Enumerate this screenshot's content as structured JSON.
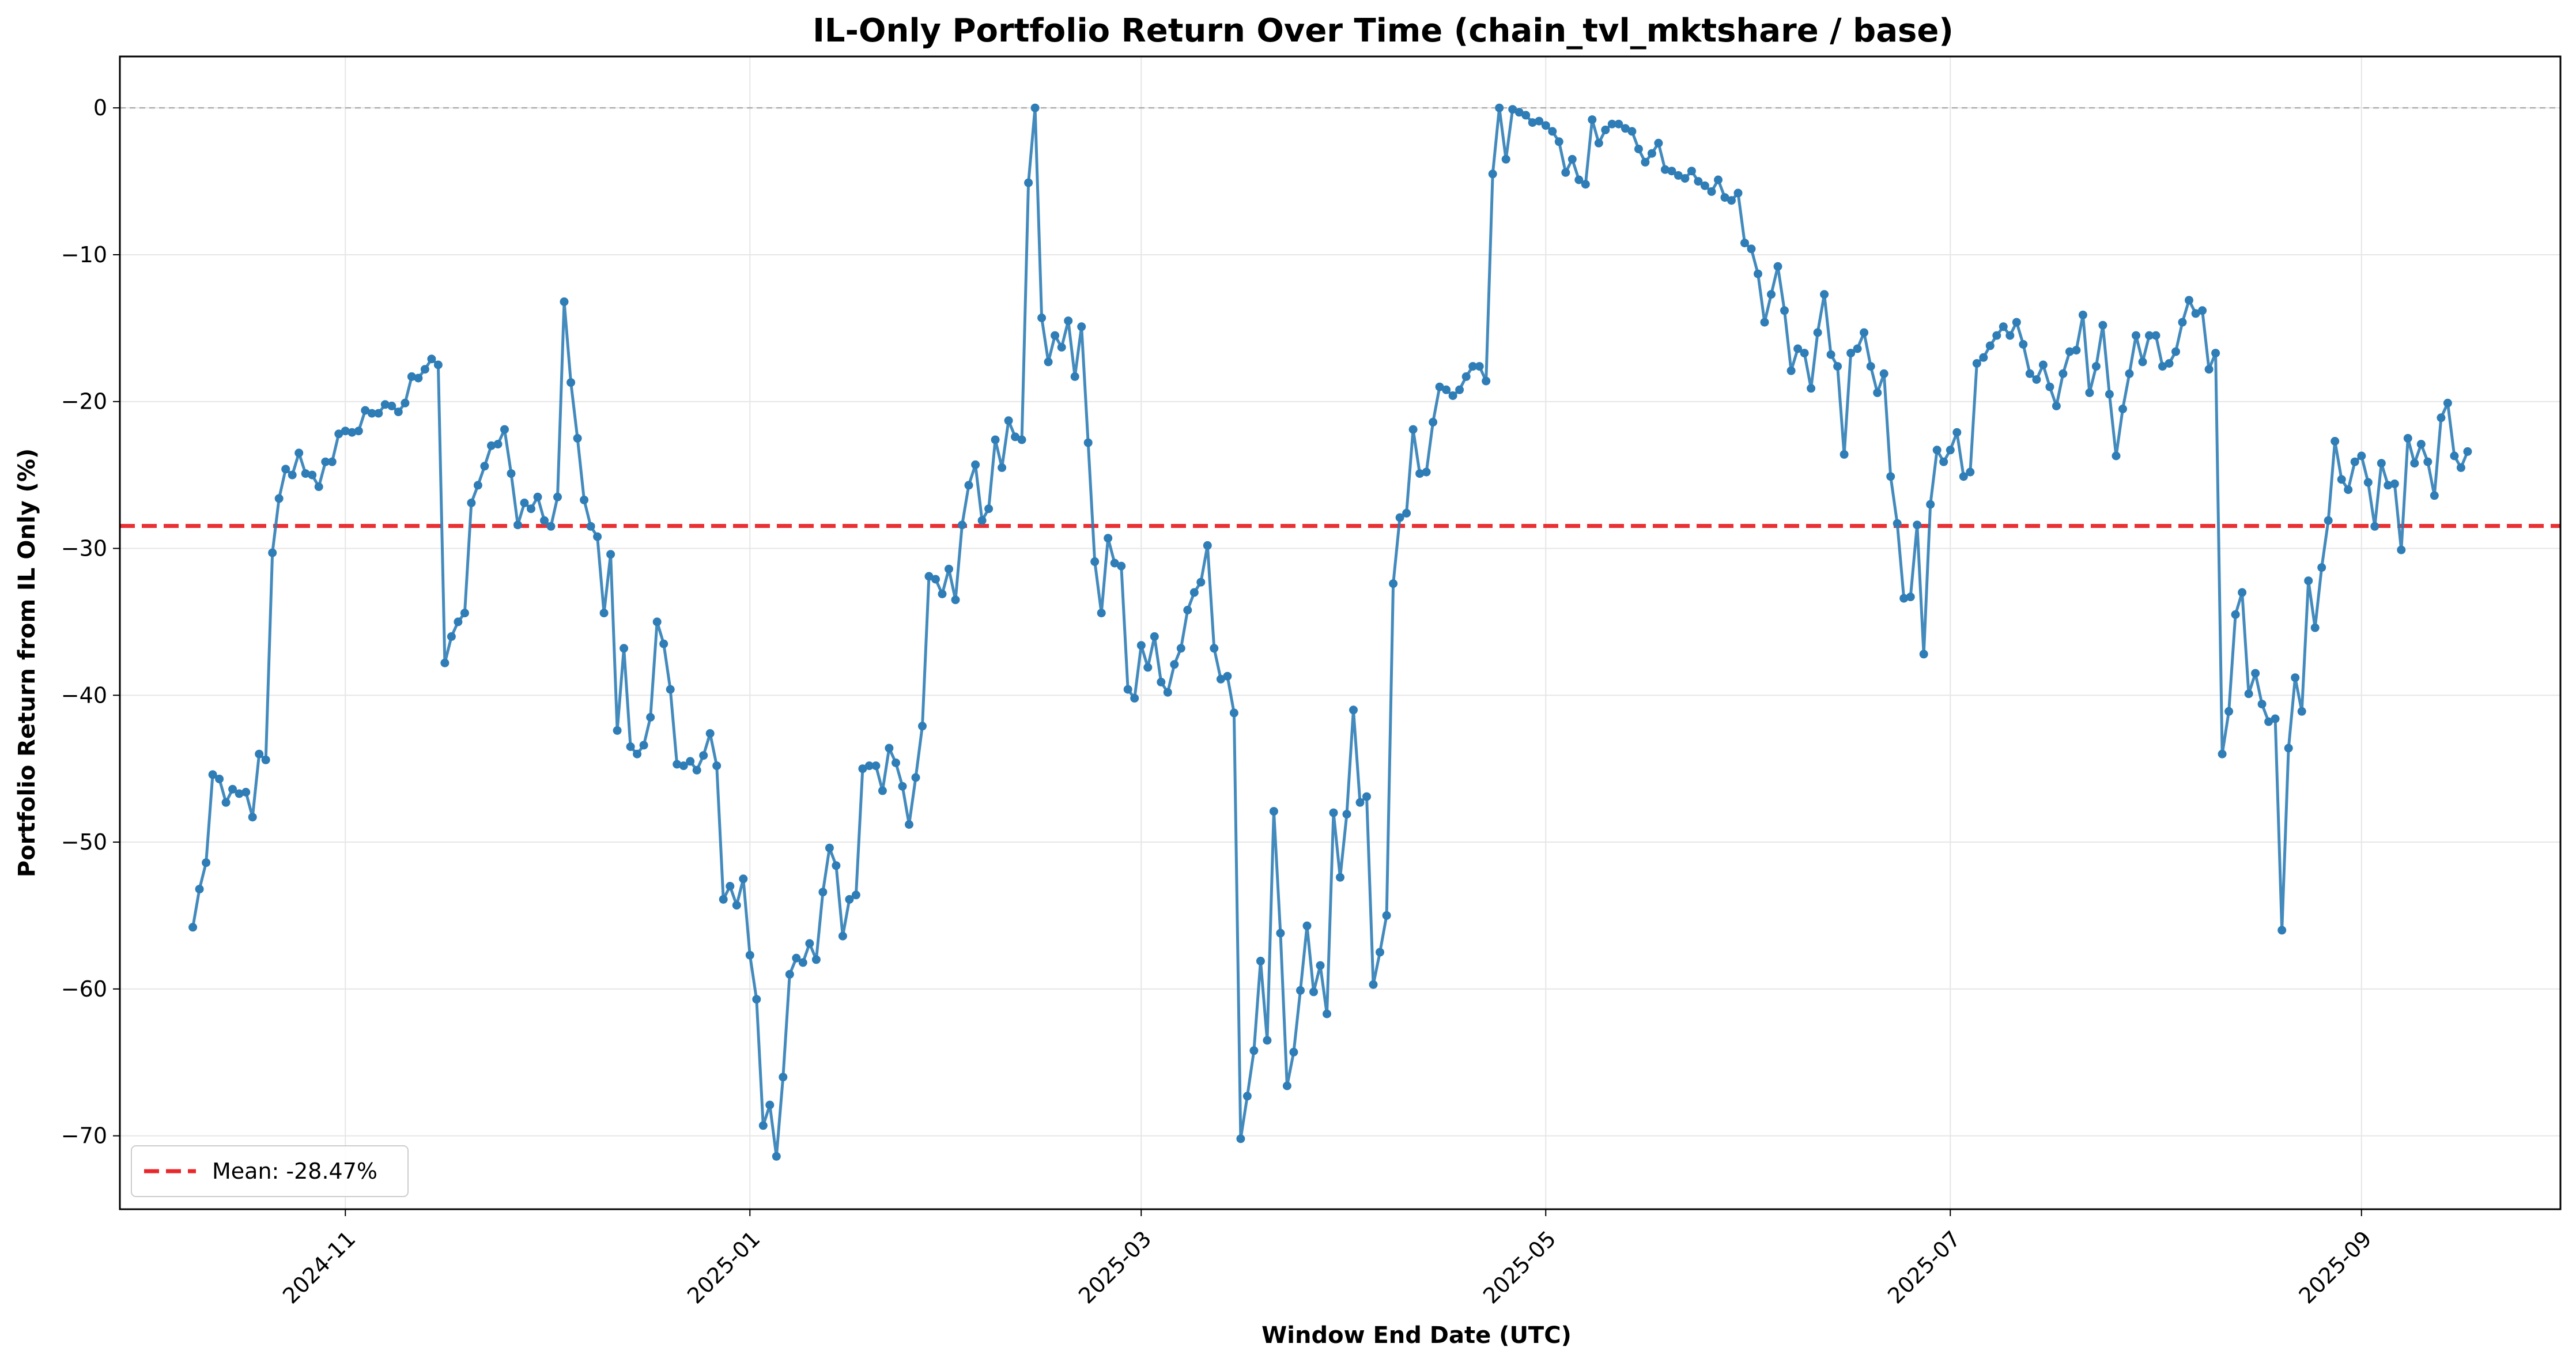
{
  "chart_data": {
    "type": "line",
    "title": "IL-Only Portfolio Return Over Time (chain_tvl_mktshare / base)",
    "xlabel": "Window End Date (UTC)",
    "ylabel": "Portfolio Return from IL Only (%)",
    "x_ticks": [
      "2024-11",
      "2025-01",
      "2025-03",
      "2025-05",
      "2025-07",
      "2025-09"
    ],
    "y_ticks": [
      0,
      -10,
      -20,
      -30,
      -40,
      -50,
      -60,
      -70
    ],
    "xlim": [
      "2024-09-28",
      "2025-10-01"
    ],
    "ylim": [
      -75,
      3.5
    ],
    "grid": true,
    "legend_position": "lower-left",
    "reference_lines": [
      {
        "label": "Mean: -28.47%",
        "value": -28.47,
        "color": "#e8272a",
        "style": "dashed"
      },
      {
        "label": "",
        "value": 0,
        "color": "#999999",
        "style": "dashed"
      }
    ],
    "series": [
      {
        "color": "#2f7db6",
        "x": [
          "2024-10-09",
          "2024-10-10",
          "2024-10-11",
          "2024-10-12",
          "2024-10-13",
          "2024-10-14",
          "2024-10-15",
          "2024-10-16",
          "2024-10-17",
          "2024-10-18",
          "2024-10-19",
          "2024-10-20",
          "2024-10-21",
          "2024-10-22",
          "2024-10-23",
          "2024-10-24",
          "2024-10-25",
          "2024-10-26",
          "2024-10-27",
          "2024-10-28",
          "2024-10-29",
          "2024-10-30",
          "2024-10-31",
          "2024-11-01",
          "2024-11-02",
          "2024-11-03",
          "2024-11-04",
          "2024-11-05",
          "2024-11-06",
          "2024-11-07",
          "2024-11-08",
          "2024-11-09",
          "2024-11-10",
          "2024-11-11",
          "2024-11-12",
          "2024-11-13",
          "2024-11-14",
          "2024-11-15",
          "2024-11-16",
          "2024-11-17",
          "2024-11-18",
          "2024-11-19",
          "2024-11-20",
          "2024-11-21",
          "2024-11-22",
          "2024-11-23",
          "2024-11-24",
          "2024-11-25",
          "2024-11-26",
          "2024-11-27",
          "2024-11-28",
          "2024-11-29",
          "2024-11-30",
          "2024-12-01",
          "2024-12-02",
          "2024-12-03",
          "2024-12-04",
          "2024-12-05",
          "2024-12-06",
          "2024-12-07",
          "2024-12-08",
          "2024-12-09",
          "2024-12-10",
          "2024-12-11",
          "2024-12-12",
          "2024-12-13",
          "2024-12-14",
          "2024-12-15",
          "2024-12-16",
          "2024-12-17",
          "2024-12-18",
          "2024-12-19",
          "2024-12-20",
          "2024-12-21",
          "2024-12-22",
          "2024-12-23",
          "2024-12-24",
          "2024-12-25",
          "2024-12-26",
          "2024-12-27",
          "2024-12-28",
          "2024-12-29",
          "2024-12-30",
          "2024-12-31",
          "2025-01-01",
          "2025-01-02",
          "2025-01-03",
          "2025-01-04",
          "2025-01-05",
          "2025-01-06",
          "2025-01-07",
          "2025-01-08",
          "2025-01-09",
          "2025-01-10",
          "2025-01-11",
          "2025-01-12",
          "2025-01-13",
          "2025-01-14",
          "2025-01-15",
          "2025-01-16",
          "2025-01-17",
          "2025-01-18",
          "2025-01-19",
          "2025-01-20",
          "2025-01-21",
          "2025-01-22",
          "2025-01-23",
          "2025-01-24",
          "2025-01-25",
          "2025-01-26",
          "2025-01-27",
          "2025-01-28",
          "2025-01-29",
          "2025-01-30",
          "2025-01-31",
          "2025-02-01",
          "2025-02-02",
          "2025-02-03",
          "2025-02-04",
          "2025-02-05",
          "2025-02-06",
          "2025-02-07",
          "2025-02-08",
          "2025-02-09",
          "2025-02-10",
          "2025-02-11",
          "2025-02-12",
          "2025-02-13",
          "2025-02-14",
          "2025-02-15",
          "2025-02-16",
          "2025-02-17",
          "2025-02-18",
          "2025-02-19",
          "2025-02-20",
          "2025-02-21",
          "2025-02-22",
          "2025-02-23",
          "2025-02-24",
          "2025-02-25",
          "2025-02-26",
          "2025-02-27",
          "2025-02-28",
          "2025-03-01",
          "2025-03-02",
          "2025-03-03",
          "2025-03-04",
          "2025-03-05",
          "2025-03-06",
          "2025-03-07",
          "2025-03-08",
          "2025-03-09",
          "2025-03-10",
          "2025-03-11",
          "2025-03-12",
          "2025-03-13",
          "2025-03-14",
          "2025-03-15",
          "2025-03-16",
          "2025-03-17",
          "2025-03-18",
          "2025-03-19",
          "2025-03-20",
          "2025-03-21",
          "2025-03-22",
          "2025-03-23",
          "2025-03-24",
          "2025-03-25",
          "2025-03-26",
          "2025-03-27",
          "2025-03-28",
          "2025-03-29",
          "2025-03-30",
          "2025-03-31",
          "2025-04-01",
          "2025-04-02",
          "2025-04-03",
          "2025-04-04",
          "2025-04-05",
          "2025-04-06",
          "2025-04-07",
          "2025-04-08",
          "2025-04-09",
          "2025-04-10",
          "2025-04-11",
          "2025-04-12",
          "2025-04-13",
          "2025-04-14",
          "2025-04-15",
          "2025-04-16",
          "2025-04-17",
          "2025-04-18",
          "2025-04-19",
          "2025-04-20",
          "2025-04-21",
          "2025-04-22",
          "2025-04-23",
          "2025-04-24",
          "2025-04-25",
          "2025-04-26",
          "2025-04-27",
          "2025-04-28",
          "2025-04-29",
          "2025-04-30",
          "2025-05-01",
          "2025-05-02",
          "2025-05-03",
          "2025-05-04",
          "2025-05-05",
          "2025-05-06",
          "2025-05-07",
          "2025-05-08",
          "2025-05-09",
          "2025-05-10",
          "2025-05-11",
          "2025-05-12",
          "2025-05-13",
          "2025-05-14",
          "2025-05-15",
          "2025-05-16",
          "2025-05-17",
          "2025-05-18",
          "2025-05-19",
          "2025-05-20",
          "2025-05-21",
          "2025-05-22",
          "2025-05-23",
          "2025-05-24",
          "2025-05-25",
          "2025-05-26",
          "2025-05-27",
          "2025-05-28",
          "2025-05-29",
          "2025-05-30",
          "2025-05-31",
          "2025-06-01",
          "2025-06-02",
          "2025-06-03",
          "2025-06-04",
          "2025-06-05",
          "2025-06-06",
          "2025-06-07",
          "2025-06-08",
          "2025-06-09",
          "2025-06-10",
          "2025-06-11",
          "2025-06-12",
          "2025-06-13",
          "2025-06-14",
          "2025-06-15",
          "2025-06-16",
          "2025-06-17",
          "2025-06-18",
          "2025-06-19",
          "2025-06-20",
          "2025-06-21",
          "2025-06-22",
          "2025-06-23",
          "2025-06-24",
          "2025-06-25",
          "2025-06-26",
          "2025-06-27",
          "2025-06-28",
          "2025-06-29",
          "2025-06-30",
          "2025-07-01",
          "2025-07-02",
          "2025-07-03",
          "2025-07-04",
          "2025-07-05",
          "2025-07-06",
          "2025-07-07",
          "2025-07-08",
          "2025-07-09",
          "2025-07-10",
          "2025-07-11",
          "2025-07-12",
          "2025-07-13",
          "2025-07-14",
          "2025-07-15",
          "2025-07-16",
          "2025-07-17",
          "2025-07-18",
          "2025-07-19",
          "2025-07-20",
          "2025-07-21",
          "2025-07-22",
          "2025-07-23",
          "2025-07-24",
          "2025-07-25",
          "2025-07-26",
          "2025-07-27",
          "2025-07-28",
          "2025-07-29",
          "2025-07-30",
          "2025-07-31",
          "2025-08-01",
          "2025-08-02",
          "2025-08-03",
          "2025-08-04",
          "2025-08-05",
          "2025-08-06",
          "2025-08-07",
          "2025-08-08",
          "2025-08-09",
          "2025-08-10",
          "2025-08-11",
          "2025-08-12",
          "2025-08-13",
          "2025-08-14",
          "2025-08-15",
          "2025-08-16",
          "2025-08-17",
          "2025-08-18",
          "2025-08-19",
          "2025-08-20",
          "2025-08-21",
          "2025-08-22",
          "2025-08-23",
          "2025-08-24",
          "2025-08-25",
          "2025-08-26",
          "2025-08-27",
          "2025-08-28",
          "2025-08-29",
          "2025-08-30",
          "2025-08-31",
          "2025-09-01",
          "2025-09-02",
          "2025-09-03",
          "2025-09-04",
          "2025-09-05",
          "2025-09-06",
          "2025-09-07",
          "2025-09-08",
          "2025-09-09",
          "2025-09-10",
          "2025-09-11",
          "2025-09-12",
          "2025-09-13",
          "2025-09-14",
          "2025-09-15",
          "2025-09-16",
          "2025-09-17"
        ],
        "y": [
          -55.8,
          -53.2,
          -51.4,
          -45.4,
          -45.7,
          -47.3,
          -46.4,
          -46.7,
          -46.6,
          -48.3,
          -44,
          -44.4,
          -30.3,
          -26.6,
          -24.6,
          -25,
          -23.5,
          -24.9,
          -25,
          -25.8,
          -24.1,
          -24.1,
          -22.2,
          -22,
          -22.1,
          -22,
          -20.6,
          -20.8,
          -20.8,
          -20.2,
          -20.3,
          -20.7,
          -20.1,
          -18.3,
          -18.4,
          -17.8,
          -17.1,
          -17.5,
          -37.8,
          -36,
          -35,
          -34.4,
          -26.9,
          -25.7,
          -24.4,
          -23,
          -22.9,
          -21.9,
          -24.9,
          -28.4,
          -26.9,
          -27.3,
          -26.5,
          -28.1,
          -28.5,
          -26.5,
          -13.2,
          -18.7,
          -22.5,
          -26.7,
          -28.5,
          -29.2,
          -34.4,
          -30.4,
          -42.4,
          -36.8,
          -43.5,
          -44,
          -43.4,
          -41.5,
          -35,
          -36.5,
          -39.6,
          -44.7,
          -44.8,
          -44.5,
          -45.1,
          -44.1,
          -42.6,
          -44.8,
          -53.9,
          -53,
          -54.3,
          -52.5,
          -57.7,
          -60.7,
          -69.3,
          -67.9,
          -71.4,
          -66,
          -59,
          -57.9,
          -58.2,
          -56.9,
          -58,
          -53.4,
          -50.4,
          -51.6,
          -56.4,
          -53.9,
          -53.6,
          -45,
          -44.8,
          -44.8,
          -46.5,
          -43.6,
          -44.6,
          -46.2,
          -48.8,
          -45.6,
          -42.1,
          -31.9,
          -32.1,
          -33.1,
          -31.4,
          -33.5,
          -28.4,
          -25.7,
          -24.3,
          -28.1,
          -27.3,
          -22.6,
          -24.5,
          -21.3,
          -22.4,
          -22.6,
          -5.1,
          0,
          -14.3,
          -17.3,
          -15.5,
          -16.3,
          -14.5,
          -18.3,
          -14.9,
          -22.8,
          -30.9,
          -34.4,
          -29.3,
          -31,
          -31.2,
          -39.6,
          -40.2,
          -36.6,
          -38.1,
          -36,
          -39.1,
          -39.8,
          -37.9,
          -36.8,
          -34.2,
          -33,
          -32.3,
          -29.8,
          -36.8,
          -38.9,
          -38.7,
          -41.2,
          -70.2,
          -67.3,
          -64.2,
          -58.1,
          -63.5,
          -47.9,
          -56.2,
          -66.6,
          -64.3,
          -60.1,
          -55.7,
          -60.2,
          -58.4,
          -61.7,
          -48,
          -52.4,
          -48.1,
          -41,
          -47.3,
          -46.9,
          -59.7,
          -57.5,
          -55,
          -32.4,
          -27.9,
          -27.6,
          -21.9,
          -24.9,
          -24.8,
          -21.4,
          -19,
          -19.2,
          -19.6,
          -19.2,
          -18.3,
          -17.6,
          -17.6,
          -18.6,
          -4.5,
          0,
          -3.5,
          -0.1,
          -0.3,
          -0.5,
          -1,
          -0.9,
          -1.2,
          -1.6,
          -2.3,
          -4.4,
          -3.5,
          -4.9,
          -5.2,
          -0.8,
          -2.4,
          -1.5,
          -1.1,
          -1.1,
          -1.4,
          -1.6,
          -2.8,
          -3.7,
          -3.1,
          -2.4,
          -4.2,
          -4.3,
          -4.6,
          -4.8,
          -4.3,
          -5,
          -5.3,
          -5.7,
          -4.9,
          -6.1,
          -6.3,
          -5.8,
          -9.2,
          -9.6,
          -11.3,
          -14.6,
          -12.7,
          -10.8,
          -13.8,
          -17.9,
          -16.4,
          -16.7,
          -19.1,
          -15.3,
          -12.7,
          -16.8,
          -17.6,
          -23.6,
          -16.7,
          -16.4,
          -15.3,
          -17.6,
          -19.4,
          -18.1,
          -25.1,
          -28.3,
          -33.4,
          -33.3,
          -28.4,
          -37.2,
          -27,
          -23.3,
          -24.1,
          -23.3,
          -22.1,
          -25.1,
          -24.8,
          -17.4,
          -17,
          -16.2,
          -15.5,
          -14.9,
          -15.5,
          -14.6,
          -16.1,
          -18.1,
          -18.5,
          -17.5,
          -19,
          -20.3,
          -18.1,
          -16.6,
          -16.5,
          -14.1,
          -19.4,
          -17.6,
          -14.8,
          -19.5,
          -23.7,
          -20.5,
          -18.1,
          -15.5,
          -17.3,
          -15.5,
          -15.5,
          -17.6,
          -17.4,
          -16.6,
          -14.6,
          -13.1,
          -14,
          -13.8,
          -17.8,
          -16.7,
          -44,
          -41.1,
          -34.5,
          -33,
          -39.9,
          -38.5,
          -40.6,
          -41.8,
          -41.6,
          -56,
          -43.6,
          -38.8,
          -41.1,
          -32.2,
          -35.4,
          -31.3,
          -28.1,
          -22.7,
          -25.3,
          -26,
          -24.1,
          -23.7,
          -25.5,
          -28.5,
          -24.2,
          -25.7,
          -25.6,
          -30.1,
          -22.5,
          -24.2,
          -22.9,
          -24.1,
          -26.4,
          -21.1,
          -20.1,
          -23.7,
          -24.5,
          -23.4
        ]
      }
    ]
  }
}
